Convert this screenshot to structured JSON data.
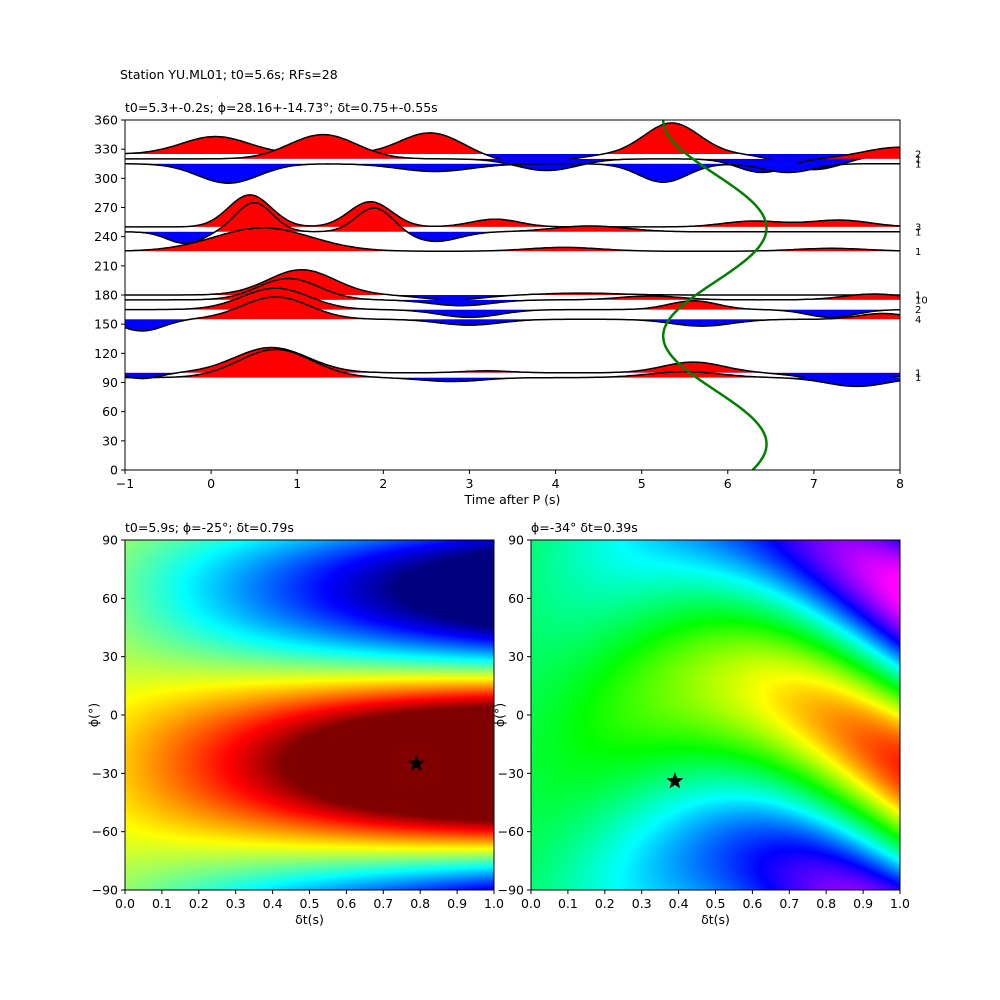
{
  "figure_title": "Station YU.ML01; t0=5.6s; RFs=28",
  "chart_data": [
    {
      "type": "line",
      "title": "t0=5.3+-0.2s; ϕ=28.16+-14.73°; δt=0.75+-0.55s",
      "xlabel": "Time after P (s)",
      "ylabel": "",
      "xlim": [
        -1,
        8
      ],
      "ylim": [
        0,
        360
      ],
      "xticks": [
        "−1",
        "0",
        "1",
        "2",
        "3",
        "4",
        "5",
        "6",
        "7",
        "8"
      ],
      "yticks": [
        "0",
        "30",
        "60",
        "90",
        "120",
        "150",
        "180",
        "210",
        "240",
        "270",
        "300",
        "330",
        "360"
      ],
      "positive_color": "#ff0000",
      "negative_color": "#0000ff",
      "traces": [
        {
          "baz": 325,
          "count": "2",
          "amp": 20,
          "waves": [
            [
              0.05,
              0.9,
              0.55
            ],
            [
              2.55,
              1.1,
              0.5
            ],
            [
              5.35,
              1.6,
              0.45
            ],
            [
              7.0,
              -0.8,
              0.5
            ],
            [
              3.7,
              -0.5,
              0.6
            ]
          ]
        },
        {
          "baz": 320,
          "count": "1",
          "amp": 20,
          "waves": [
            [
              1.3,
              1.25,
              0.55
            ],
            [
              3.9,
              -0.6,
              0.5
            ],
            [
              6.4,
              -0.7,
              0.4
            ],
            [
              8.0,
              0.6,
              0.6
            ]
          ]
        },
        {
          "baz": 315,
          "count": "1",
          "amp": 20,
          "waves": [
            [
              0.2,
              -1.0,
              0.5
            ],
            [
              2.6,
              -0.4,
              0.6
            ],
            [
              5.25,
              -0.95,
              0.4
            ],
            [
              6.7,
              -0.45,
              0.4
            ]
          ]
        },
        {
          "baz": 250,
          "count": "3",
          "amp": 20,
          "waves": [
            [
              0.45,
              1.65,
              0.35
            ],
            [
              1.85,
              1.3,
              0.35
            ],
            [
              3.3,
              0.4,
              0.4
            ],
            [
              6.3,
              0.3,
              0.5
            ],
            [
              7.3,
              0.35,
              0.5
            ]
          ]
        },
        {
          "baz": 245,
          "count": "1",
          "amp": 20,
          "waves": [
            [
              0.5,
              1.5,
              0.3
            ],
            [
              1.9,
              1.25,
              0.3
            ],
            [
              -0.3,
              -0.6,
              0.3
            ],
            [
              2.6,
              -0.5,
              0.4
            ],
            [
              4.4,
              0.3,
              0.6
            ]
          ]
        },
        {
          "baz": 225,
          "count": "1",
          "amp": 20,
          "waves": [
            [
              0.6,
              1.2,
              0.8
            ],
            [
              4.1,
              0.2,
              0.6
            ],
            [
              7.2,
              0.15,
              0.6
            ]
          ]
        },
        {
          "baz": 180,
          "count": "1",
          "amp": 20,
          "waves": [
            [
              1.05,
              1.3,
              0.55
            ],
            [
              2.8,
              -0.25,
              0.5
            ],
            [
              4.3,
              0.1,
              0.6
            ]
          ]
        },
        {
          "baz": 175,
          "count": "10",
          "amp": 20,
          "waves": [
            [
              0.9,
              1.1,
              0.5
            ],
            [
              2.9,
              -0.3,
              0.5
            ],
            [
              5.1,
              0.2,
              0.5
            ],
            [
              7.7,
              0.3,
              0.5
            ]
          ]
        },
        {
          "baz": 165,
          "count": "2",
          "amp": 20,
          "waves": [
            [
              0.75,
              1.1,
              0.55
            ],
            [
              3.0,
              -0.4,
              0.5
            ],
            [
              5.6,
              0.45,
              0.4
            ],
            [
              7.2,
              -0.4,
              0.4
            ]
          ]
        },
        {
          "baz": 155,
          "count": "4",
          "amp": 20,
          "waves": [
            [
              0.75,
              1.15,
              0.55
            ],
            [
              -0.8,
              -0.6,
              0.35
            ],
            [
              3.0,
              -0.3,
              0.5
            ],
            [
              5.7,
              -0.35,
              0.5
            ],
            [
              7.8,
              0.3,
              0.4
            ]
          ]
        },
        {
          "baz": 100,
          "count": "1",
          "amp": 20,
          "waves": [
            [
              0.7,
              1.3,
              0.6
            ],
            [
              3.2,
              0.1,
              0.4
            ],
            [
              5.6,
              0.55,
              0.5
            ],
            [
              -0.8,
              -0.3,
              0.3
            ],
            [
              7.4,
              -0.5,
              0.6
            ]
          ]
        },
        {
          "baz": 95,
          "count": "1",
          "amp": 20,
          "waves": [
            [
              0.75,
              1.45,
              0.6
            ],
            [
              2.8,
              -0.2,
              0.5
            ],
            [
              5.5,
              0.3,
              0.6
            ],
            [
              7.5,
              -0.45,
              0.5
            ]
          ]
        }
      ],
      "series": [
        {
          "type": "line",
          "color": "#008000",
          "x_center": 5.85,
          "x_amplitude": 0.6,
          "periods": 1.62,
          "phase_at_360": -1.5708
        }
      ]
    },
    {
      "type": "heatmap",
      "title": "t0=5.9s; ϕ=-25°; δt=0.79s",
      "xlabel": "δt(s)",
      "ylabel": "ϕ(°)",
      "xlim": [
        0,
        1
      ],
      "ylim": [
        -90,
        90
      ],
      "colormap": "jet",
      "xticks": [
        "0.0",
        "0.1",
        "0.2",
        "0.3",
        "0.4",
        "0.5",
        "0.6",
        "0.7",
        "0.8",
        "0.9",
        "1.0"
      ],
      "yticks": [
        "−90",
        "−60",
        "−30",
        "0",
        "30",
        "60",
        "90"
      ],
      "best": {
        "dt": 0.79,
        "phi": -25
      }
    },
    {
      "type": "heatmap",
      "title": "ϕ=-34° δt=0.39s",
      "xlabel": "δt(s)",
      "ylabel": "ϕ(°)",
      "xlim": [
        0,
        1
      ],
      "ylim": [
        -90,
        90
      ],
      "colormap": "hsv",
      "xticks": [
        "0.0",
        "0.1",
        "0.2",
        "0.3",
        "0.4",
        "0.5",
        "0.6",
        "0.7",
        "0.8",
        "0.9",
        "1.0"
      ],
      "yticks": [
        "−90",
        "−60",
        "−30",
        "0",
        "30",
        "60",
        "90"
      ],
      "best": {
        "dt": 0.39,
        "phi": -34
      }
    }
  ]
}
